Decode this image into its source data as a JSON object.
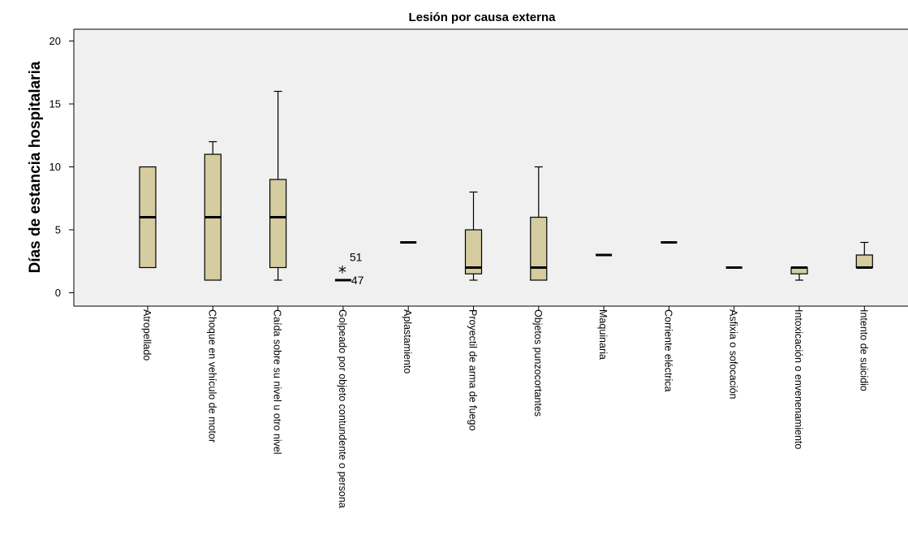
{
  "chart_data": {
    "type": "boxplot",
    "title": "Lesión por causa externa",
    "xlabel": "",
    "ylabel": "Días de estancia hospitalaria",
    "ylim": [
      -1,
      21
    ],
    "yticks": [
      0,
      5,
      10,
      15,
      20
    ],
    "grid": false,
    "colors": {
      "box_fill": "#d5cc9f",
      "plot_bg": "#f0f0f0",
      "stroke": "#000000"
    },
    "categories": [
      "Atropellado",
      "Choque en vehículo de motor",
      "Caída sobre su nivel u otro nivel",
      "Golpeado por objeto contundente o persona",
      "Aplastamiento",
      "Proyectil de arma de fuego",
      "Objetos punzocortantes",
      "Maquinaria",
      "Corriente eléctrica",
      "Asfixia o sofocación",
      "Intoxicación o envenenamiento",
      "Intento de suicidio"
    ],
    "boxes": [
      {
        "min": 2,
        "q1": 2,
        "median": 6,
        "q3": 10,
        "max": 10
      },
      {
        "min": 1,
        "q1": 1,
        "median": 6,
        "q3": 11,
        "max": 12
      },
      {
        "min": 1,
        "q1": 2,
        "median": 6,
        "q3": 9,
        "max": 16
      },
      {
        "min": 1,
        "q1": 1,
        "median": 1,
        "q3": 1,
        "max": 1
      },
      {
        "min": 4,
        "q1": 4,
        "median": 4,
        "q3": 4,
        "max": 4
      },
      {
        "min": 1,
        "q1": 1.5,
        "median": 2,
        "q3": 5,
        "max": 8
      },
      {
        "min": 1,
        "q1": 1,
        "median": 2,
        "q3": 6,
        "max": 10
      },
      {
        "min": 3,
        "q1": 3,
        "median": 3,
        "q3": 3,
        "max": 3
      },
      {
        "min": 4,
        "q1": 4,
        "median": 4,
        "q3": 4,
        "max": 4
      },
      {
        "min": 2,
        "q1": 2,
        "median": 2,
        "q3": 2,
        "max": 2
      },
      {
        "min": 1,
        "q1": 1.5,
        "median": 2,
        "q3": 2,
        "max": 2
      },
      {
        "min": 2,
        "q1": 2,
        "median": 2,
        "q3": 3,
        "max": 4
      }
    ],
    "outliers": [
      {
        "category": 3,
        "value": 2,
        "marker": "*",
        "label": "51"
      },
      {
        "category": 3,
        "value": 1,
        "marker": "",
        "label": "47"
      }
    ]
  }
}
